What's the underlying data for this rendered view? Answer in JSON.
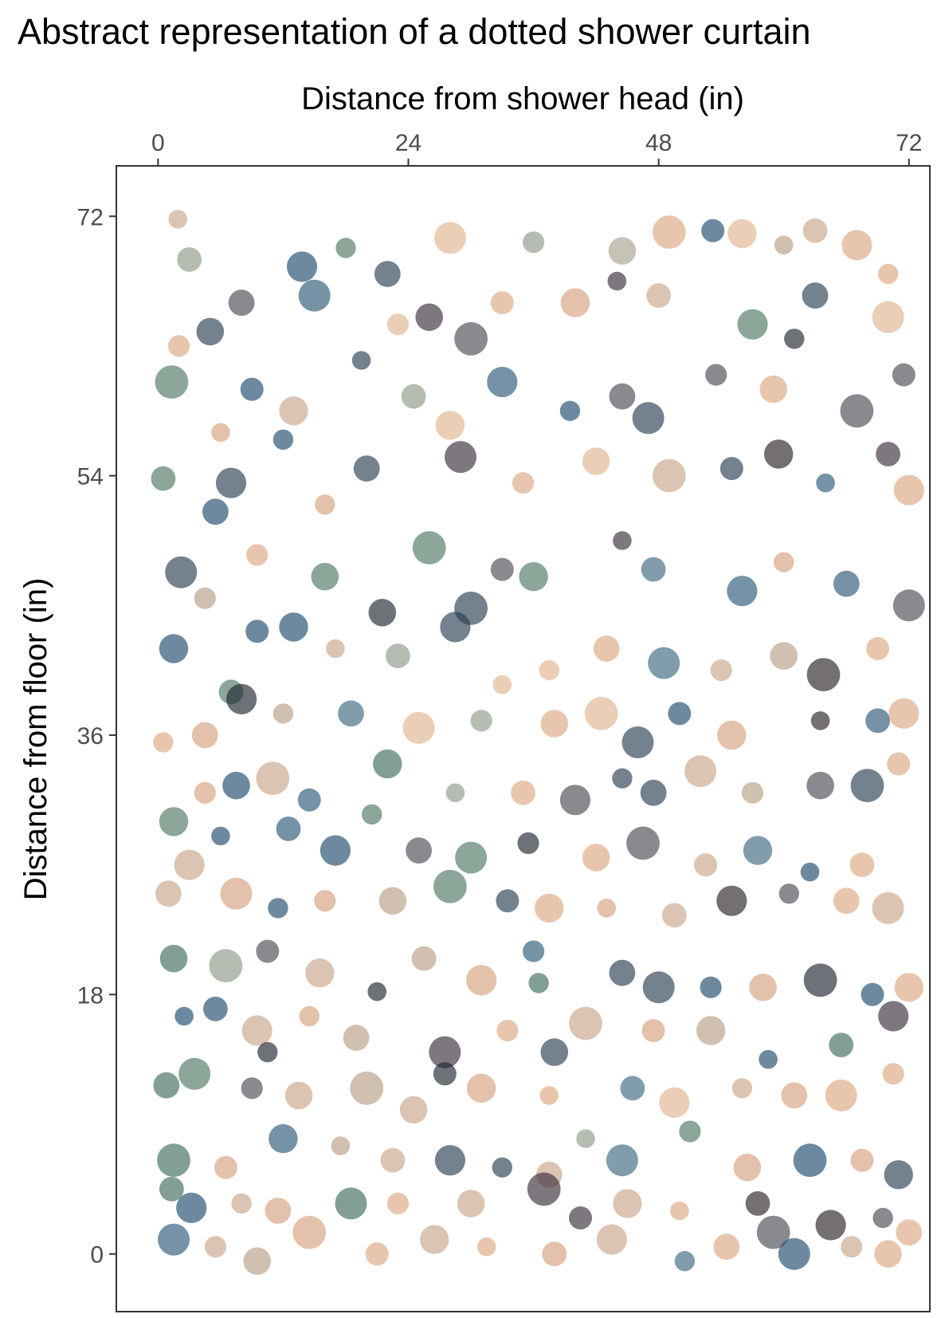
{
  "title": "Abstract representation of a dotted shower curtain",
  "chart_data": {
    "type": "scatter",
    "title": "Abstract representation of a dotted shower curtain",
    "xlabel": "Distance from shower head (in)",
    "ylabel": "Distance from floor (in)",
    "x_axis_position": "top",
    "xlim": [
      -4,
      74
    ],
    "ylim": [
      -4,
      75.5
    ],
    "xticks": [
      0,
      24,
      48,
      72
    ],
    "yticks": [
      0,
      18,
      36,
      54,
      72
    ],
    "grid": false,
    "legend": "none",
    "point_opacity": 0.65,
    "radius_range_in": [
      0.9,
      1.6
    ],
    "palette": [
      "#dba882",
      "#e0b48f",
      "#d4a07c",
      "#c9a58a",
      "#b89c84",
      "#a8a18e",
      "#8e9a88",
      "#4f7763",
      "#3f6b5a",
      "#1f4a6b",
      "#2b5876",
      "#3d6880",
      "#2a3d52",
      "#4a4b55",
      "#3b2e3a",
      "#2a2326",
      "#1d2730"
    ],
    "points": [
      [
        1.9,
        71.8,
        "#c9a58a"
      ],
      [
        3.0,
        69.0,
        "#8e9a88"
      ],
      [
        13.8,
        68.5,
        "#1f4a6b"
      ],
      [
        18.0,
        69.8,
        "#4f7763"
      ],
      [
        22.0,
        68.0,
        "#2a3d52"
      ],
      [
        28.0,
        70.5,
        "#e0b48f"
      ],
      [
        36.0,
        70.2,
        "#8e9a88"
      ],
      [
        44.5,
        69.6,
        "#a8a18e"
      ],
      [
        49.0,
        70.9,
        "#dba882"
      ],
      [
        53.2,
        71.0,
        "#1f4a6b"
      ],
      [
        56.0,
        70.8,
        "#e0b48f"
      ],
      [
        60.0,
        70.0,
        "#b89c84"
      ],
      [
        63.0,
        71.0,
        "#c9a58a"
      ],
      [
        67.0,
        70.0,
        "#dba882"
      ],
      [
        70.0,
        68.0,
        "#dba882"
      ],
      [
        8.0,
        66.0,
        "#4a4b55"
      ],
      [
        15.0,
        66.5,
        "#2b5876"
      ],
      [
        23.0,
        64.5,
        "#e0b48f"
      ],
      [
        26.0,
        65.0,
        "#3b2e3a"
      ],
      [
        30.0,
        63.5,
        "#4a4b55"
      ],
      [
        33.0,
        66.0,
        "#dba882"
      ],
      [
        40.0,
        66.0,
        "#d4a07c"
      ],
      [
        44.0,
        67.5,
        "#3b2e3a"
      ],
      [
        48.0,
        66.5,
        "#c9a58a"
      ],
      [
        57.0,
        64.5,
        "#4f7763"
      ],
      [
        61.0,
        63.5,
        "#1d2730"
      ],
      [
        63.0,
        66.5,
        "#2a3d52"
      ],
      [
        70.0,
        65.0,
        "#e0b48f"
      ],
      [
        2.0,
        63.0,
        "#dba882"
      ],
      [
        5.0,
        64.0,
        "#2a3d52"
      ],
      [
        1.3,
        60.5,
        "#4f7763"
      ],
      [
        9.0,
        60.0,
        "#1f4a6b"
      ],
      [
        13.0,
        58.5,
        "#c9a58a"
      ],
      [
        19.5,
        62.0,
        "#2a3d52"
      ],
      [
        24.5,
        59.5,
        "#8e9a88"
      ],
      [
        33.0,
        60.5,
        "#2b5876"
      ],
      [
        39.5,
        58.5,
        "#1f4a6b"
      ],
      [
        44.5,
        59.5,
        "#4a4b55"
      ],
      [
        47.0,
        58.0,
        "#2a3d52"
      ],
      [
        53.5,
        61.0,
        "#4a4b55"
      ],
      [
        59.0,
        60.0,
        "#dba882"
      ],
      [
        67.0,
        58.5,
        "#4a4b55"
      ],
      [
        71.5,
        61.0,
        "#4a4b55"
      ],
      [
        28.0,
        57.5,
        "#e0b48f"
      ],
      [
        6.0,
        57.0,
        "#d4a07c"
      ],
      [
        0.5,
        53.8,
        "#4f7763"
      ],
      [
        7.0,
        53.5,
        "#2a3d52"
      ],
      [
        12.0,
        56.5,
        "#1f4a6b"
      ],
      [
        20.0,
        54.5,
        "#2a3d52"
      ],
      [
        29.0,
        55.3,
        "#3b2e3a"
      ],
      [
        35.0,
        53.5,
        "#dba882"
      ],
      [
        42.0,
        55.0,
        "#e0b48f"
      ],
      [
        49.0,
        54.0,
        "#c9a58a"
      ],
      [
        55.0,
        54.5,
        "#2a3d52"
      ],
      [
        59.5,
        55.5,
        "#2a2326"
      ],
      [
        64.0,
        53.5,
        "#2b5876"
      ],
      [
        70.0,
        55.5,
        "#3b2e3a"
      ],
      [
        72.0,
        53.0,
        "#dba882"
      ],
      [
        16.0,
        52.0,
        "#d4a07c"
      ],
      [
        5.5,
        51.5,
        "#1f4a6b"
      ],
      [
        2.2,
        47.3,
        "#2a3d52"
      ],
      [
        9.5,
        48.5,
        "#dba882"
      ],
      [
        16.0,
        47.0,
        "#4f7763"
      ],
      [
        26.0,
        49.0,
        "#4f7763"
      ],
      [
        33.0,
        47.5,
        "#4a4b55"
      ],
      [
        36.0,
        47.0,
        "#4f7763"
      ],
      [
        44.5,
        49.5,
        "#3b2e3a"
      ],
      [
        47.5,
        47.5,
        "#3d6880"
      ],
      [
        56.0,
        46.0,
        "#2b5876"
      ],
      [
        60.0,
        48.0,
        "#d4a07c"
      ],
      [
        66.0,
        46.5,
        "#2b5876"
      ],
      [
        72.0,
        45.0,
        "#4a4b55"
      ],
      [
        4.5,
        45.5,
        "#b89c84"
      ],
      [
        21.5,
        44.5,
        "#1d2730"
      ],
      [
        30.0,
        44.8,
        "#2a3d52"
      ],
      [
        9.5,
        43.2,
        "#1f4a6b"
      ],
      [
        13.0,
        43.5,
        "#1f4a6b"
      ],
      [
        17.0,
        42.0,
        "#c9a58a"
      ],
      [
        23.0,
        41.5,
        "#8e9a88"
      ],
      [
        28.5,
        43.5,
        "#2a3d52"
      ],
      [
        37.5,
        40.5,
        "#e0b48f"
      ],
      [
        43.0,
        42.0,
        "#dba882"
      ],
      [
        48.5,
        41.0,
        "#3d6880"
      ],
      [
        54.0,
        40.5,
        "#c9a58a"
      ],
      [
        60.0,
        41.5,
        "#b89c84"
      ],
      [
        63.8,
        40.2,
        "#2a2326"
      ],
      [
        69.0,
        42.0,
        "#dba882"
      ],
      [
        1.5,
        42.0,
        "#1f4a6b"
      ],
      [
        33.0,
        39.5,
        "#e0b48f"
      ],
      [
        7.0,
        39.0,
        "#4f7763"
      ],
      [
        8.0,
        38.5,
        "#1d2730"
      ],
      [
        12.0,
        37.5,
        "#b89c84"
      ],
      [
        18.5,
        37.5,
        "#3d6880"
      ],
      [
        25.0,
        36.5,
        "#e0b48f"
      ],
      [
        31.0,
        37.0,
        "#8e9a88"
      ],
      [
        38.0,
        36.8,
        "#dba882"
      ],
      [
        42.5,
        37.5,
        "#e0b48f"
      ],
      [
        50.0,
        37.5,
        "#1f4a6b"
      ],
      [
        55.0,
        36.0,
        "#d4a07c"
      ],
      [
        63.5,
        37.0,
        "#2a2326"
      ],
      [
        69.0,
        37.0,
        "#2b5876"
      ],
      [
        71.5,
        37.5,
        "#dba882"
      ],
      [
        0.5,
        35.5,
        "#dba882"
      ],
      [
        4.5,
        36.0,
        "#d4a07c"
      ],
      [
        46.0,
        35.5,
        "#2a3d52"
      ],
      [
        4.5,
        32.0,
        "#d4a07c"
      ],
      [
        7.5,
        32.5,
        "#1f4a6b"
      ],
      [
        11.0,
        33.0,
        "#c9a58a"
      ],
      [
        14.5,
        31.5,
        "#2b5876"
      ],
      [
        22.0,
        34.0,
        "#3f6b5a"
      ],
      [
        28.5,
        32.0,
        "#8e9a88"
      ],
      [
        35.0,
        32.0,
        "#dba882"
      ],
      [
        40.0,
        31.5,
        "#4a4b55"
      ],
      [
        44.5,
        33.0,
        "#2a3d52"
      ],
      [
        47.5,
        32.0,
        "#2a3d52"
      ],
      [
        52.0,
        33.5,
        "#c9a58a"
      ],
      [
        57.0,
        32.0,
        "#b89c84"
      ],
      [
        63.5,
        32.5,
        "#4a4b55"
      ],
      [
        68.0,
        32.5,
        "#2a3d52"
      ],
      [
        71.0,
        34.0,
        "#dba882"
      ],
      [
        1.5,
        30.0,
        "#4f7763"
      ],
      [
        6.0,
        29.0,
        "#1f4a6b"
      ],
      [
        12.5,
        29.5,
        "#2b5876"
      ],
      [
        17.0,
        28.0,
        "#1f4a6b"
      ],
      [
        20.5,
        30.5,
        "#4f7763"
      ],
      [
        25.0,
        28.0,
        "#4a4b55"
      ],
      [
        30.0,
        27.5,
        "#4f7763"
      ],
      [
        35.5,
        28.5,
        "#1d2730"
      ],
      [
        42.0,
        27.5,
        "#dba882"
      ],
      [
        46.5,
        28.5,
        "#4a4b55"
      ],
      [
        52.5,
        27.0,
        "#c9a58a"
      ],
      [
        57.5,
        28.0,
        "#3d6880"
      ],
      [
        62.5,
        26.5,
        "#1f4a6b"
      ],
      [
        67.5,
        27.0,
        "#dba882"
      ],
      [
        3.0,
        27.0,
        "#c9a58a"
      ],
      [
        11.5,
        24.0,
        "#1f4a6b"
      ],
      [
        1.0,
        25.0,
        "#c9a58a"
      ],
      [
        7.5,
        25.0,
        "#d4a07c"
      ],
      [
        16.0,
        24.5,
        "#d4a07c"
      ],
      [
        22.5,
        24.5,
        "#b89c84"
      ],
      [
        28.0,
        25.5,
        "#4f7763"
      ],
      [
        33.5,
        24.5,
        "#2a3d52"
      ],
      [
        37.5,
        24.0,
        "#dba882"
      ],
      [
        43.0,
        24.0,
        "#d4a07c"
      ],
      [
        49.5,
        23.5,
        "#c9a58a"
      ],
      [
        55.0,
        24.5,
        "#2a2326"
      ],
      [
        60.5,
        25.0,
        "#4a4b55"
      ],
      [
        66.0,
        24.5,
        "#dba882"
      ],
      [
        70.0,
        24.0,
        "#c9a58a"
      ],
      [
        36.0,
        21.0,
        "#2b5876"
      ],
      [
        1.5,
        20.5,
        "#3f6b5a"
      ],
      [
        6.5,
        20.0,
        "#8e9a88"
      ],
      [
        10.5,
        21.0,
        "#4a4b55"
      ],
      [
        15.5,
        19.5,
        "#c9a58a"
      ],
      [
        21.0,
        18.2,
        "#1d2730"
      ],
      [
        25.5,
        20.5,
        "#b89c84"
      ],
      [
        31.0,
        19.0,
        "#d4a07c"
      ],
      [
        36.5,
        18.8,
        "#3f6b5a"
      ],
      [
        44.5,
        19.5,
        "#2a3d52"
      ],
      [
        48.0,
        18.5,
        "#2a3d52"
      ],
      [
        53.0,
        18.5,
        "#1f4a6b"
      ],
      [
        58.0,
        18.5,
        "#d4a07c"
      ],
      [
        63.5,
        19.0,
        "#1d2730"
      ],
      [
        68.5,
        18.0,
        "#1f4a6b"
      ],
      [
        72.0,
        18.5,
        "#dba882"
      ],
      [
        2.5,
        16.5,
        "#1f4a6b"
      ],
      [
        5.5,
        17.0,
        "#1f4a6b"
      ],
      [
        9.5,
        15.5,
        "#c9a58a"
      ],
      [
        14.5,
        16.5,
        "#d4a07c"
      ],
      [
        19.0,
        15.0,
        "#b89c84"
      ],
      [
        27.5,
        14.0,
        "#3b2e3a"
      ],
      [
        33.5,
        15.5,
        "#dba882"
      ],
      [
        38.0,
        14.0,
        "#2a3d52"
      ],
      [
        41.0,
        16.0,
        "#c9a58a"
      ],
      [
        47.5,
        15.5,
        "#d4a07c"
      ],
      [
        53.0,
        15.5,
        "#b89c84"
      ],
      [
        58.5,
        13.5,
        "#1f4a6b"
      ],
      [
        65.5,
        14.5,
        "#3f6b5a"
      ],
      [
        70.5,
        16.5,
        "#3b2e3a"
      ],
      [
        10.5,
        14.0,
        "#1d2730"
      ],
      [
        0.8,
        11.7,
        "#3f6b5a"
      ],
      [
        3.5,
        12.5,
        "#4f7763"
      ],
      [
        9.0,
        11.5,
        "#4a4b55"
      ],
      [
        13.5,
        11.0,
        "#c9a58a"
      ],
      [
        20.0,
        11.5,
        "#b89c84"
      ],
      [
        27.5,
        12.5,
        "#1d2730"
      ],
      [
        31.0,
        11.5,
        "#d4a07c"
      ],
      [
        37.5,
        11.0,
        "#dba882"
      ],
      [
        45.5,
        11.5,
        "#3d6880"
      ],
      [
        49.5,
        10.5,
        "#e0b48f"
      ],
      [
        56.0,
        11.5,
        "#c9a58a"
      ],
      [
        61.0,
        11.0,
        "#d4a07c"
      ],
      [
        65.5,
        11.0,
        "#dba882"
      ],
      [
        70.5,
        12.5,
        "#dba882"
      ],
      [
        24.5,
        10.0,
        "#c9a58a"
      ],
      [
        1.5,
        6.5,
        "#3f6b5a"
      ],
      [
        6.5,
        6.0,
        "#d4a07c"
      ],
      [
        12.0,
        8.0,
        "#2b5876"
      ],
      [
        17.5,
        7.5,
        "#b89c84"
      ],
      [
        22.5,
        6.5,
        "#c9a58a"
      ],
      [
        28.0,
        6.5,
        "#2a3d52"
      ],
      [
        33.0,
        6.0,
        "#2a3d52"
      ],
      [
        37.5,
        5.5,
        "#c9a58a"
      ],
      [
        44.5,
        6.5,
        "#3d6880"
      ],
      [
        51.0,
        8.5,
        "#4f7763"
      ],
      [
        56.5,
        6.0,
        "#d4a07c"
      ],
      [
        62.5,
        6.5,
        "#1f4a6b"
      ],
      [
        67.5,
        6.5,
        "#d4a07c"
      ],
      [
        71.0,
        5.5,
        "#2a3d52"
      ],
      [
        41.0,
        8.0,
        "#8e9a88"
      ],
      [
        1.3,
        4.5,
        "#3f6b5a"
      ],
      [
        3.2,
        3.2,
        "#1f4a6b"
      ],
      [
        8.0,
        3.5,
        "#c9a58a"
      ],
      [
        11.5,
        3.0,
        "#d4a07c"
      ],
      [
        18.5,
        3.5,
        "#3f6b5a"
      ],
      [
        23.0,
        3.5,
        "#dba882"
      ],
      [
        30.0,
        3.5,
        "#c9a58a"
      ],
      [
        37.0,
        4.5,
        "#3b2e3a"
      ],
      [
        40.5,
        2.5,
        "#3b2e3a"
      ],
      [
        45.0,
        3.5,
        "#c9a58a"
      ],
      [
        50.0,
        3.0,
        "#dba882"
      ],
      [
        57.5,
        3.5,
        "#2a2326"
      ],
      [
        64.5,
        2.0,
        "#2a2326"
      ],
      [
        69.5,
        2.5,
        "#4a4b55"
      ],
      [
        72.0,
        1.5,
        "#dba882"
      ],
      [
        1.5,
        1.0,
        "#2b5876"
      ],
      [
        5.5,
        0.5,
        "#c9a58a"
      ],
      [
        9.5,
        -0.5,
        "#b89c84"
      ],
      [
        14.5,
        1.5,
        "#d4a07c"
      ],
      [
        21.0,
        0.0,
        "#dba882"
      ],
      [
        26.5,
        1.0,
        "#c9a58a"
      ],
      [
        31.5,
        0.5,
        "#dba882"
      ],
      [
        38.0,
        0.0,
        "#d4a07c"
      ],
      [
        43.5,
        1.0,
        "#c9a58a"
      ],
      [
        50.5,
        -0.5,
        "#3d6880"
      ],
      [
        54.5,
        0.5,
        "#dba882"
      ],
      [
        61.0,
        0.0,
        "#1f4a6b"
      ],
      [
        66.5,
        0.5,
        "#c9a58a"
      ],
      [
        70.0,
        0.0,
        "#dba882"
      ],
      [
        59.0,
        1.5,
        "#4a4b55"
      ]
    ]
  }
}
